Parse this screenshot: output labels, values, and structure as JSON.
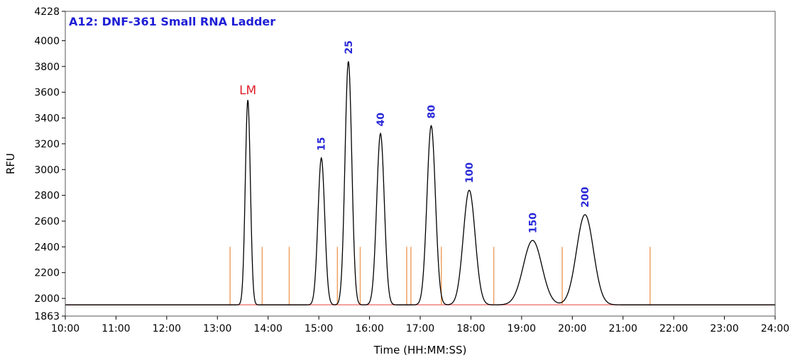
{
  "chart_data": {
    "type": "line",
    "title": "A12: DNF-361 Small RNA Ladder",
    "xlabel": "Time (HH:MM:SS)",
    "ylabel": "RFU",
    "xlim_minutes": [
      600,
      1440
    ],
    "ylim": [
      1863,
      4228
    ],
    "y_ticks": [
      1863,
      2000,
      2200,
      2400,
      2600,
      2800,
      3000,
      3200,
      3400,
      3600,
      3800,
      4000,
      4228
    ],
    "x_ticks": [
      {
        "t": 600,
        "label": "10:00"
      },
      {
        "t": 660,
        "label": "11:00"
      },
      {
        "t": 720,
        "label": "12:00"
      },
      {
        "t": 780,
        "label": "13:00"
      },
      {
        "t": 840,
        "label": "14:00"
      },
      {
        "t": 900,
        "label": "15:00"
      },
      {
        "t": 960,
        "label": "16:00"
      },
      {
        "t": 1020,
        "label": "17:00"
      },
      {
        "t": 1080,
        "label": "18:00"
      },
      {
        "t": 1140,
        "label": "19:00"
      },
      {
        "t": 1200,
        "label": "20:00"
      },
      {
        "t": 1260,
        "label": "21:00"
      },
      {
        "t": 1320,
        "label": "22:00"
      },
      {
        "t": 1380,
        "label": "23:00"
      },
      {
        "t": 1440,
        "label": "24:00"
      }
    ],
    "baseline": 1950,
    "peaks": [
      {
        "label": "LM",
        "t": 816,
        "height": 3540,
        "width": 3.0,
        "kind": "marker"
      },
      {
        "label": "15",
        "t": 903,
        "height": 3090,
        "width": 4.0,
        "kind": "fragment"
      },
      {
        "label": "25",
        "t": 935,
        "height": 3840,
        "width": 4.0,
        "kind": "fragment"
      },
      {
        "label": "40",
        "t": 973,
        "height": 3280,
        "width": 4.5,
        "kind": "fragment"
      },
      {
        "label": "80",
        "t": 1033,
        "height": 3340,
        "width": 5.0,
        "kind": "fragment"
      },
      {
        "label": "100",
        "t": 1078,
        "height": 2840,
        "width": 7.0,
        "kind": "fragment"
      },
      {
        "label": "150",
        "t": 1153,
        "height": 2450,
        "width": 11.0,
        "kind": "fragment"
      },
      {
        "label": "200",
        "t": 1215,
        "height": 2650,
        "width": 10.0,
        "kind": "fragment"
      }
    ],
    "integration_markers_t": [
      795,
      833,
      865,
      922,
      949,
      1004,
      1009,
      1045,
      1107,
      1188,
      1292
    ],
    "colors": {
      "trace": "#000000",
      "baseline_line": "#f08080",
      "integration_marker": "#f0a060",
      "title": "#1f1fd6",
      "peak_label": "#2a2ad8",
      "lm_label": "#e0202a"
    }
  }
}
